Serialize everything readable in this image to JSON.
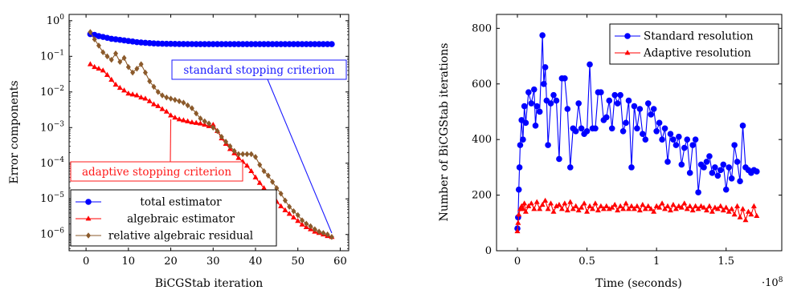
{
  "chart_data": [
    {
      "type": "line",
      "xlabel": "BiCGStab iteration",
      "ylabel": "Error components",
      "log_y": true,
      "xlim": [
        -4,
        62
      ],
      "ylim": [
        3.5e-07,
        1.5
      ],
      "x_ticks": [
        0,
        10,
        20,
        30,
        40,
        50,
        60
      ],
      "x_tick_labels": [
        "0",
        "10",
        "20",
        "30",
        "40",
        "50",
        "60"
      ],
      "y_ticks": [
        1,
        0.1,
        0.01,
        0.001,
        0.0001,
        1e-05,
        1e-06
      ],
      "y_tick_labels": [
        {
          "b": "10",
          "e": "0"
        },
        {
          "b": "10",
          "e": "−1"
        },
        {
          "b": "10",
          "e": "−2"
        },
        {
          "b": "10",
          "e": "−3"
        },
        {
          "b": "10",
          "e": "−4"
        },
        {
          "b": "10",
          "e": "−5"
        },
        {
          "b": "10",
          "e": "−6"
        }
      ],
      "legend_position": "bottom-right",
      "annotations": [
        {
          "text": "standard stopping criterion",
          "color": "#1a1aff",
          "points_to": [
            58,
            1.1e-06
          ]
        },
        {
          "text": "adaptive stopping criterion",
          "color": "#ff1a1a",
          "points_to": [
            20,
            0.0017
          ]
        }
      ],
      "series": [
        {
          "name": "total estimator",
          "color": "#0000ff",
          "marker": "circle",
          "x": [
            1,
            2,
            3,
            4,
            5,
            6,
            7,
            8,
            9,
            10,
            11,
            12,
            13,
            14,
            15,
            16,
            17,
            18,
            19,
            20,
            21,
            22,
            23,
            24,
            25,
            26,
            27,
            28,
            29,
            30,
            31,
            32,
            33,
            34,
            35,
            36,
            37,
            38,
            39,
            40,
            41,
            42,
            43,
            44,
            45,
            46,
            47,
            48,
            49,
            50,
            51,
            52,
            53,
            54,
            55,
            56,
            57,
            58
          ],
          "y": [
            0.42,
            0.4,
            0.37,
            0.35,
            0.33,
            0.31,
            0.3,
            0.29,
            0.28,
            0.27,
            0.26,
            0.25,
            0.245,
            0.24,
            0.235,
            0.23,
            0.228,
            0.226,
            0.225,
            0.224,
            0.223,
            0.222,
            0.222,
            0.221,
            0.221,
            0.22,
            0.22,
            0.22,
            0.22,
            0.22,
            0.22,
            0.22,
            0.22,
            0.22,
            0.22,
            0.22,
            0.22,
            0.22,
            0.22,
            0.22,
            0.22,
            0.22,
            0.22,
            0.22,
            0.22,
            0.22,
            0.22,
            0.22,
            0.22,
            0.22,
            0.22,
            0.22,
            0.22,
            0.22,
            0.22,
            0.22,
            0.22,
            0.22
          ]
        },
        {
          "name": "algebraic estimator",
          "color": "#ff0000",
          "marker": "triangle",
          "x": [
            1,
            2,
            3,
            4,
            5,
            6,
            7,
            8,
            9,
            10,
            11,
            12,
            13,
            14,
            15,
            16,
            17,
            18,
            19,
            20,
            21,
            22,
            23,
            24,
            25,
            26,
            27,
            28,
            29,
            30,
            31,
            32,
            33,
            34,
            35,
            36,
            37,
            38,
            39,
            40,
            41,
            42,
            43,
            44,
            45,
            46,
            47,
            48,
            49,
            50,
            51,
            52,
            53,
            54,
            55,
            56,
            57,
            58
          ],
          "y": [
            0.06,
            0.05,
            0.045,
            0.04,
            0.03,
            0.022,
            0.016,
            0.013,
            0.011,
            0.009,
            0.0085,
            0.008,
            0.007,
            0.0065,
            0.0055,
            0.0045,
            0.004,
            0.0033,
            0.0028,
            0.0022,
            0.0019,
            0.0017,
            0.0016,
            0.0015,
            0.0014,
            0.00135,
            0.0013,
            0.0012,
            0.0011,
            0.0012,
            0.0008,
            0.0005,
            0.00035,
            0.00025,
            0.00019,
            0.00014,
            0.00011,
            8.5e-05,
            6e-05,
            4e-05,
            2.8e-05,
            2e-05,
            1.5e-05,
            1.1e-05,
            8.3e-06,
            6.2e-06,
            4.8e-06,
            3.8e-06,
            3e-06,
            2.4e-06,
            1.9e-06,
            1.6e-06,
            1.4e-06,
            1.2e-06,
            1.1e-06,
            1e-06,
            9e-07,
            8.5e-07
          ]
        },
        {
          "name": "relative algebraic residual",
          "color": "#8b5a2b",
          "marker": "diamond",
          "x": [
            1,
            2,
            3,
            4,
            5,
            6,
            7,
            8,
            9,
            10,
            11,
            12,
            13,
            14,
            15,
            16,
            17,
            18,
            19,
            20,
            21,
            22,
            23,
            24,
            25,
            26,
            27,
            28,
            29,
            30,
            31,
            32,
            33,
            34,
            35,
            36,
            37,
            38,
            39,
            40,
            41,
            42,
            43,
            44,
            45,
            46,
            47,
            48,
            49,
            50,
            51,
            52,
            53,
            54,
            55,
            56,
            57,
            58
          ],
          "y": [
            0.48,
            0.3,
            0.2,
            0.13,
            0.1,
            0.08,
            0.12,
            0.07,
            0.09,
            0.05,
            0.035,
            0.045,
            0.06,
            0.035,
            0.02,
            0.014,
            0.01,
            0.008,
            0.007,
            0.0065,
            0.006,
            0.0055,
            0.005,
            0.0042,
            0.0035,
            0.0025,
            0.0018,
            0.0015,
            0.0013,
            0.001,
            0.0008,
            0.00055,
            0.0004,
            0.0003,
            0.00022,
            0.00018,
            0.00018,
            0.00018,
            0.00018,
            0.00015,
            9e-05,
            6e-05,
            4.5e-05,
            3e-05,
            2e-05,
            1.4e-05,
            9e-06,
            6e-06,
            4.5e-06,
            3.5e-06,
            2.5e-06,
            2e-06,
            1.7e-06,
            1.4e-06,
            1.2e-06,
            1.1e-06,
            1e-06,
            8.5e-07
          ]
        }
      ]
    },
    {
      "type": "line",
      "xlabel": "Time (seconds)",
      "ylabel": "Number of BiCGStab iterations",
      "xlim": [
        -0.15,
        1.9
      ],
      "ylim": [
        0,
        850
      ],
      "x_ticks": [
        0,
        0.5,
        1,
        1.5
      ],
      "x_tick_labels": [
        "0",
        "0.5",
        "1",
        "1.5"
      ],
      "x_multiplier": {
        "b": "·10",
        "e": "8"
      },
      "y_ticks": [
        0,
        200,
        400,
        600,
        800
      ],
      "y_tick_labels": [
        "0",
        "200",
        "400",
        "600",
        "800"
      ],
      "legend_position": "top-right",
      "series": [
        {
          "name": "Standard resolution",
          "color": "#0000ff",
          "marker": "circle",
          "x": [
            0,
            0.005,
            0.01,
            0.015,
            0.02,
            0.03,
            0.04,
            0.05,
            0.06,
            0.08,
            0.1,
            0.12,
            0.13,
            0.14,
            0.16,
            0.18,
            0.19,
            0.2,
            0.21,
            0.22,
            0.24,
            0.26,
            0.28,
            0.3,
            0.32,
            0.34,
            0.36,
            0.38,
            0.4,
            0.42,
            0.44,
            0.46,
            0.48,
            0.5,
            0.52,
            0.54,
            0.56,
            0.58,
            0.6,
            0.62,
            0.64,
            0.66,
            0.68,
            0.7,
            0.72,
            0.74,
            0.76,
            0.78,
            0.8,
            0.82,
            0.84,
            0.86,
            0.88,
            0.9,
            0.92,
            0.94,
            0.96,
            0.98,
            1.0,
            1.02,
            1.04,
            1.06,
            1.08,
            1.1,
            1.12,
            1.14,
            1.16,
            1.18,
            1.2,
            1.22,
            1.24,
            1.26,
            1.28,
            1.3,
            1.32,
            1.34,
            1.36,
            1.38,
            1.4,
            1.42,
            1.44,
            1.46,
            1.48,
            1.5,
            1.52,
            1.54,
            1.56,
            1.58,
            1.6,
            1.62,
            1.64,
            1.66,
            1.68,
            1.7,
            1.72
          ],
          "y": [
            80,
            120,
            220,
            300,
            380,
            470,
            400,
            520,
            460,
            570,
            530,
            580,
            450,
            520,
            500,
            775,
            600,
            660,
            540,
            380,
            530,
            560,
            540,
            330,
            620,
            620,
            510,
            300,
            440,
            430,
            530,
            440,
            420,
            430,
            670,
            440,
            440,
            570,
            570,
            470,
            480,
            540,
            440,
            560,
            530,
            560,
            430,
            460,
            540,
            300,
            520,
            440,
            510,
            420,
            400,
            530,
            490,
            510,
            430,
            460,
            400,
            440,
            320,
            420,
            400,
            380,
            410,
            310,
            370,
            400,
            280,
            380,
            400,
            210,
            310,
            300,
            320,
            340,
            280,
            300,
            270,
            290,
            310,
            220,
            300,
            260,
            380,
            320,
            250,
            450,
            300,
            290,
            280,
            290,
            285
          ]
        },
        {
          "name": "Adaptive resolution",
          "color": "#ff0000",
          "marker": "triangle",
          "x": [
            0,
            0.005,
            0.01,
            0.02,
            0.03,
            0.04,
            0.05,
            0.06,
            0.08,
            0.1,
            0.12,
            0.14,
            0.16,
            0.18,
            0.2,
            0.22,
            0.24,
            0.26,
            0.28,
            0.3,
            0.32,
            0.34,
            0.36,
            0.38,
            0.4,
            0.42,
            0.44,
            0.46,
            0.48,
            0.5,
            0.52,
            0.54,
            0.56,
            0.58,
            0.6,
            0.62,
            0.64,
            0.66,
            0.68,
            0.7,
            0.72,
            0.74,
            0.76,
            0.78,
            0.8,
            0.82,
            0.84,
            0.86,
            0.88,
            0.9,
            0.92,
            0.94,
            0.96,
            0.98,
            1.0,
            1.02,
            1.04,
            1.06,
            1.08,
            1.1,
            1.12,
            1.14,
            1.16,
            1.18,
            1.2,
            1.22,
            1.24,
            1.26,
            1.28,
            1.3,
            1.32,
            1.34,
            1.36,
            1.38,
            1.4,
            1.42,
            1.44,
            1.46,
            1.48,
            1.5,
            1.52,
            1.54,
            1.56,
            1.58,
            1.6,
            1.62,
            1.64,
            1.66,
            1.68,
            1.7,
            1.72
          ],
          "y": [
            70,
            100,
            130,
            150,
            160,
            150,
            170,
            140,
            160,
            170,
            150,
            175,
            150,
            165,
            180,
            150,
            170,
            140,
            160,
            165,
            150,
            170,
            145,
            175,
            150,
            160,
            145,
            155,
            170,
            140,
            160,
            150,
            170,
            145,
            160,
            150,
            160,
            150,
            155,
            165,
            145,
            160,
            150,
            170,
            150,
            160,
            150,
            160,
            145,
            165,
            150,
            160,
            150,
            140,
            160,
            155,
            170,
            150,
            160,
            145,
            165,
            150,
            160,
            155,
            170,
            150,
            160,
            145,
            160,
            150,
            160,
            155,
            145,
            160,
            140,
            155,
            150,
            160,
            145,
            155,
            140,
            150,
            130,
            160,
            120,
            150,
            110,
            140,
            130,
            160,
            125
          ]
        }
      ]
    }
  ]
}
